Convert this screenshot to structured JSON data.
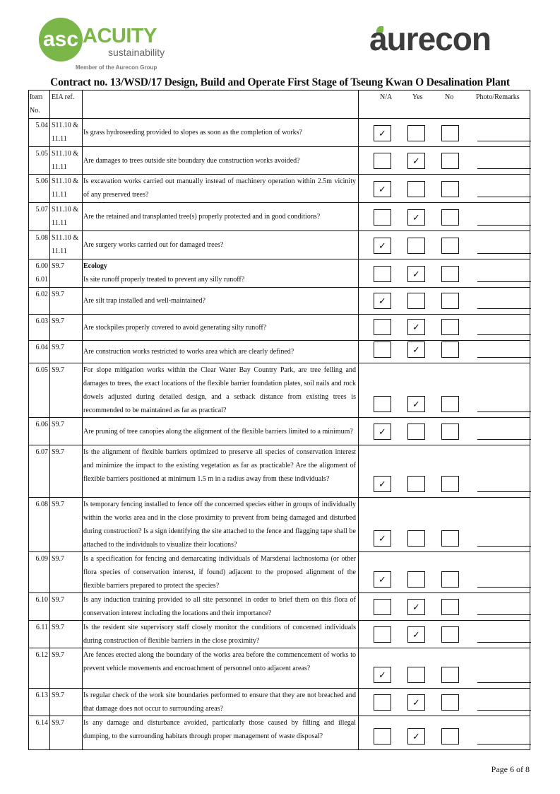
{
  "header": {
    "acuity_logo": "ACUITY",
    "acuity_sub": "sustainability",
    "acuity_member": "Member of the Aurecon Group",
    "aurecon_logo": "aurecon"
  },
  "title": "Contract no.  13/WSD/17 Design, Build and Operate First Stage of Tseung Kwan O Desalination Plant",
  "columns": {
    "item": "Item No.",
    "eia": "EIA ref.",
    "na": "N/A",
    "yes": "Yes",
    "no": "No",
    "remarks": "Photo/Remarks"
  },
  "check_mark": "✓",
  "rows": [
    {
      "item": "5.04",
      "eia": "S11.10 & 11.11",
      "text": "Is grass hydroseeding provided to slopes as soon as the completion of works?",
      "answer": "na"
    },
    {
      "item": "5.05",
      "eia": "S11.10 & 11.11",
      "text": "Are damages to trees outside site boundary due construction works avoided?",
      "answer": "yes"
    },
    {
      "item": "5.06",
      "eia": "S11.10 & 11.11",
      "text": "Is excavation works carried out manually instead of machinery operation within 2.5m vicinity of any preserved trees?",
      "answer": "na"
    },
    {
      "item": "5.07",
      "eia": "S11.10 & 11.11",
      "text": "Are the retained and transplanted tree(s) properly protected and in good conditions?",
      "answer": "yes"
    },
    {
      "item": "5.08",
      "eia": "S11.10 & 11.11",
      "text": "Are surgery works carried out for damaged trees?",
      "answer": "na"
    },
    {
      "item": "6.00 6.01",
      "eia": "S9.7",
      "heading": "Ecology",
      "text": "Is site runoff properly treated to prevent any silly runoff?",
      "answer": "yes"
    },
    {
      "item": "6.02",
      "eia": "S9.7",
      "text": "Are silt trap installed and well-maintained?",
      "answer": "na"
    },
    {
      "item": "6.03",
      "eia": "S9.7",
      "text": "Are stockpiles properly covered to avoid generating silty runoff?",
      "answer": "yes"
    },
    {
      "item": "6.04",
      "eia": "S9.7",
      "text": "Are construction works restricted to works area which are clearly defined?",
      "answer": "yes"
    },
    {
      "item": "6.05",
      "eia": "S9.7",
      "text": "For slope mitigation works within the Clear Water Bay Country Park, are tree felling and damages to trees, the exact locations of the flexible barrier foundation plates, soil nails and rock dowels adjusted during detailed design, and a setback distance from existing trees is recommended to be maintained as far as practical?",
      "answer": "yes"
    },
    {
      "item": "6.06",
      "eia": "S9.7",
      "text": "Are pruning of tree canopies along the alignment of the flexible barriers limited to a minimum?",
      "answer": "na"
    },
    {
      "item": "6.07",
      "eia": "S9.7",
      "text": "Is the alignment of flexible barriers optimized to preserve all species of conservation interest and minimize the impact to the existing vegetation as far as practicable? Are the alignment of flexible barriers positioned at minimum 1.5 m in a radius away from these individuals?",
      "answer": "na"
    },
    {
      "item": "6.08",
      "eia": "S9.7",
      "text": "Is temporary fencing installed to fence off the concerned species either in groups of individually within the works area and in the close proximity to prevent from being damaged and disturbed during construction? Is a sign identifying the site attached to the fence and flagging tape shall be attached to the individuals to visualize their locations?",
      "answer": "na"
    },
    {
      "item": "6.09",
      "eia": "S9.7",
      "text": "Is a specification for fencing and demarcating individuals of Marsdenai lachnostoma (or other flora species of conservation interest, if found) adjacent to the proposed alignment of the flexible barriers prepared to protect the species?",
      "answer": "na"
    },
    {
      "item": "6.10",
      "eia": "S9.7",
      "text": "Is any induction training provided to all site personnel in order to brief them on this flora of conservation interest including the locations and their importance?",
      "answer": "yes"
    },
    {
      "item": "6.11",
      "eia": "S9.7",
      "text": "Is the resident site supervisory staff closely monitor the conditions of concerned individuals during construction of flexible barriers in the close  proximity?",
      "answer": "yes"
    },
    {
      "item": "6.12",
      "eia": "S9.7",
      "text": "Are fences erected along the boundary of the works area before the commencement of works to prevent vehicle movements and encroachment of personnel onto adjacent areas?",
      "answer": "na"
    },
    {
      "item": "6.13",
      "eia": "S9.7",
      "text": "Is regular check of the work site boundaries performed to ensure that they are not breached and that damage does not occur to surrounding areas?",
      "answer": "yes"
    },
    {
      "item": "6.14",
      "eia": "S9.7",
      "text": "Is any damage and disturbance avoided, particularly those caused by filling and illegal dumping, to the surrounding habitats through proper management of waste  disposal?",
      "answer": "yes"
    }
  ],
  "footer": {
    "page_label": "Page 6 of 8"
  }
}
